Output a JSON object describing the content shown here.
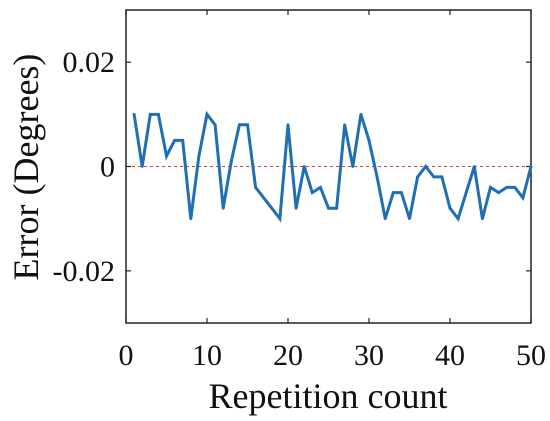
{
  "chart_data": {
    "type": "line",
    "title": "",
    "xlabel": "Repetition count",
    "ylabel": "Error (Degrees)",
    "xlim": [
      0,
      50
    ],
    "ylim": [
      -0.03,
      0.03
    ],
    "xticks": [
      0,
      10,
      20,
      30,
      40,
      50
    ],
    "xtick_labels": [
      "0",
      "10",
      "20",
      "30",
      "40",
      "50"
    ],
    "yticks": [
      -0.02,
      0,
      0.02
    ],
    "ytick_labels": [
      "-0.02",
      "0",
      "0.02"
    ],
    "grid": false,
    "legend": "none",
    "reference_line": {
      "y": 0,
      "style": "dashed",
      "color": "#e03a3a"
    },
    "series": [
      {
        "color": "#1f6fb2",
        "x": [
          1,
          2,
          3,
          4,
          5,
          6,
          7,
          8,
          9,
          10,
          11,
          12,
          13,
          14,
          15,
          16,
          17,
          18,
          19,
          20,
          21,
          22,
          23,
          24,
          25,
          26,
          27,
          28,
          29,
          30,
          31,
          32,
          33,
          34,
          35,
          36,
          37,
          38,
          39,
          40,
          41,
          42,
          43,
          44,
          45,
          46,
          47,
          48,
          49,
          50
        ],
        "values": [
          0.01,
          0,
          0.01,
          0.01,
          0.002,
          0.005,
          0.005,
          -0.01,
          0.002,
          0.01,
          0.008,
          -0.008,
          0.001,
          0.008,
          0.008,
          -0.004,
          -0.006,
          -0.008,
          -0.01,
          0.008,
          -0.008,
          0,
          -0.005,
          -0.004,
          -0.008,
          -0.008,
          0.008,
          0,
          0.01,
          0.005,
          -0.002,
          -0.01,
          -0.005,
          -0.005,
          -0.01,
          -0.002,
          0,
          -0.002,
          -0.002,
          -0.008,
          -0.01,
          -0.005,
          0,
          -0.01,
          -0.004,
          -0.005,
          -0.004,
          -0.004,
          -0.006,
          0
        ]
      }
    ]
  }
}
